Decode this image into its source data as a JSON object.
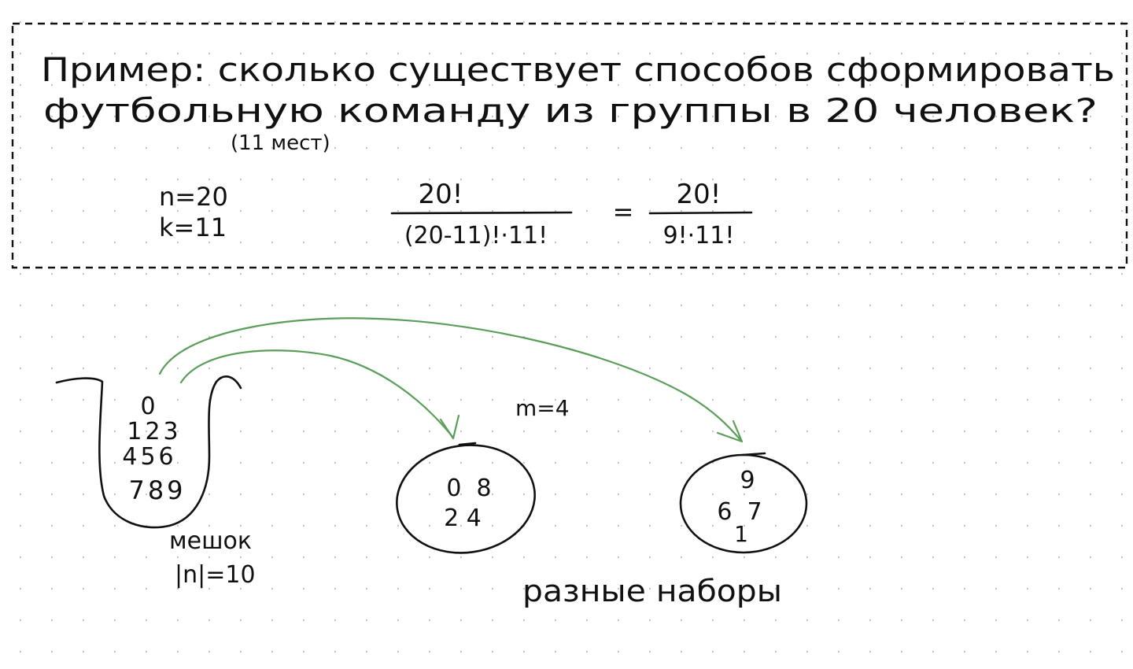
{
  "example": {
    "line1": "Пример: сколько существует способов сформировать",
    "line2": "футбольную команду из группы в 20 человек?",
    "note": "(11 мест)",
    "n_label": "n=20",
    "k_label": "k=11",
    "frac1_num": "20!",
    "frac1_den": "(20-11)!·11!",
    "equals": "=",
    "frac2_num": "20!",
    "frac2_den": "9!·11!"
  },
  "bag": {
    "digits_row1": "0",
    "digits_row2": "123",
    "digits_row3": "456",
    "digits_row4": "789",
    "label": "мешок",
    "size_label": "|n|=10"
  },
  "m_label": "m=4",
  "set_a": {
    "row1": "0  8",
    "row2": "2 4"
  },
  "set_b": {
    "row1": "9",
    "row2": "6  7",
    "row3": "1"
  },
  "sets_label": "разные наборы",
  "colors": {
    "ink": "#111111",
    "arrow": "#5a9e5a",
    "dots": "#c9c9c9"
  }
}
